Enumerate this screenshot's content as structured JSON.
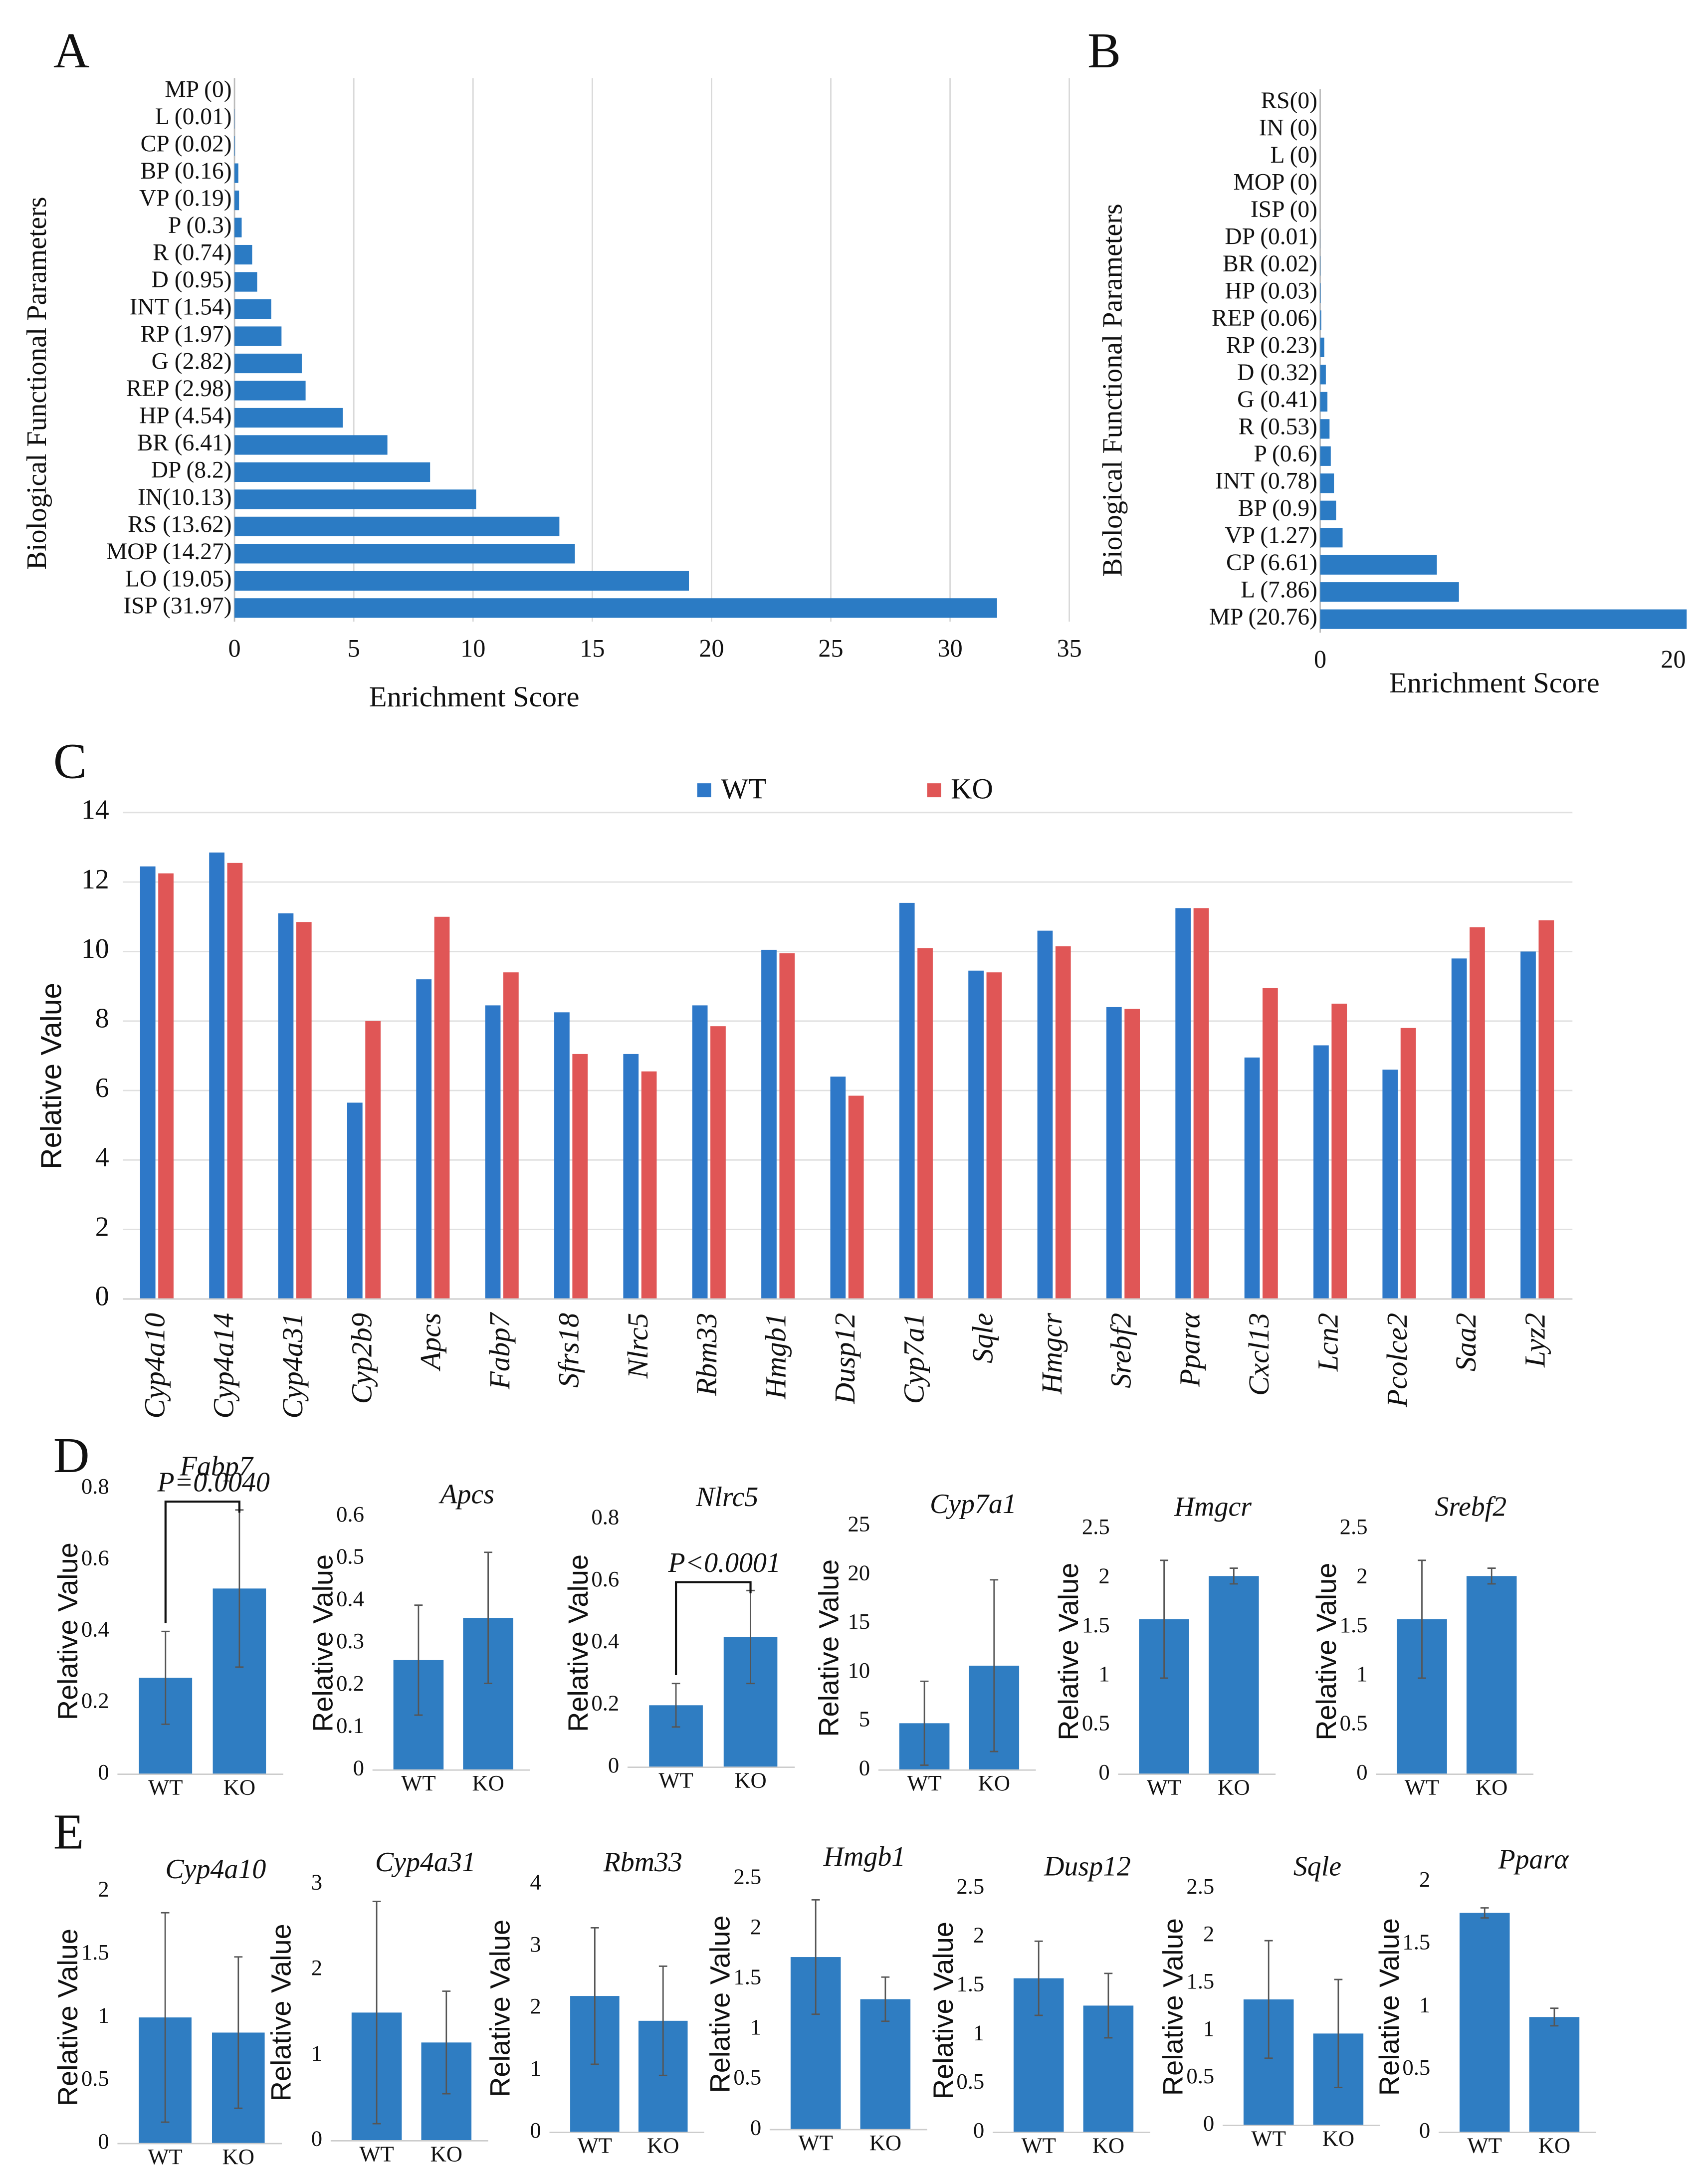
{
  "chart_data": [
    {
      "type": "bar",
      "orientation": "horizontal",
      "panel": "A",
      "xlabel": "Enrichment Score",
      "ylabel": "Biological Functional Parameters",
      "color": "#2b7bc4",
      "grid": true,
      "categories": [
        "MP (0)",
        "L (0.01)",
        "CP (0.02)",
        "BP (0.16)",
        "VP (0.19)",
        "P (0.3)",
        "R (0.74)",
        "D (0.95)",
        "INT (1.54)",
        "RP (1.97)",
        "G (2.82)",
        "REP (2.98)",
        "HP (4.54)",
        "BR (6.41)",
        "DP (8.2)",
        "IN(10.13)",
        "RS (13.62)",
        "MOP (14.27)",
        "LO (19.05)",
        "ISP (31.97)"
      ],
      "values": [
        0,
        0.01,
        0.02,
        0.16,
        0.19,
        0.3,
        0.74,
        0.95,
        1.54,
        1.97,
        2.82,
        2.98,
        4.54,
        6.41,
        8.2,
        10.13,
        13.62,
        14.27,
        19.05,
        31.97
      ],
      "xlim": [
        0,
        35
      ],
      "xticks": [
        0,
        5,
        10,
        15,
        20,
        25,
        30,
        35
      ]
    },
    {
      "type": "bar",
      "orientation": "horizontal",
      "panel": "B",
      "xlabel": "Enrichment Score",
      "ylabel": "Biological Functional Parameters",
      "color": "#2b7bc4",
      "grid": false,
      "categories": [
        "RS(0)",
        "IN (0)",
        "L (0)",
        "MOP (0)",
        "ISP (0)",
        "DP (0.01)",
        "BR (0.02)",
        "HP (0.03)",
        "REP (0.06)",
        "RP (0.23)",
        "D (0.32)",
        "G (0.41)",
        "R (0.53)",
        "P (0.6)",
        "INT (0.78)",
        "BP (0.9)",
        "VP (1.27)",
        "CP (6.61)",
        "L (7.86)",
        "MP (20.76)"
      ],
      "values": [
        0,
        0,
        0,
        0,
        0,
        0.01,
        0.02,
        0.03,
        0.06,
        0.23,
        0.32,
        0.41,
        0.53,
        0.6,
        0.78,
        0.9,
        1.27,
        6.61,
        7.86,
        20.76
      ],
      "xlim": [
        0,
        21
      ],
      "xticks": [
        0,
        20
      ]
    },
    {
      "type": "bar",
      "panel": "C",
      "ylabel": "Relative Value",
      "grid": true,
      "legend": "top",
      "categories": [
        "Cyp4a10",
        "Cyp4a14",
        "Cyp4a31",
        "Cyp2b9",
        "Apcs",
        "Fabp7",
        "Sfrs18",
        "Nlrc5",
        "Rbm33",
        "Hmgb1",
        "Dusp12",
        "Cyp7a1",
        "Sqle",
        "Hmgcr",
        "Srebf2",
        "Pparα",
        "Cxcl13",
        "Lcn2",
        "Pcolce2",
        "Saa2",
        "Lyz2"
      ],
      "series": [
        {
          "name": "WT",
          "color": "#2e78c8",
          "values": [
            12.45,
            12.85,
            11.1,
            5.65,
            9.2,
            8.45,
            8.25,
            7.05,
            8.45,
            10.05,
            6.4,
            11.4,
            9.45,
            10.6,
            8.4,
            11.25,
            6.95,
            7.3,
            6.6,
            9.8,
            10.0
          ]
        },
        {
          "name": "KO",
          "color": "#e05656",
          "values": [
            12.25,
            12.55,
            10.85,
            8.0,
            11.0,
            9.4,
            7.05,
            6.55,
            7.85,
            9.95,
            5.85,
            10.1,
            9.4,
            10.15,
            8.35,
            11.25,
            8.95,
            8.5,
            7.8,
            10.7,
            10.9
          ]
        }
      ],
      "ylim": [
        0,
        14
      ],
      "yticks": [
        0,
        2,
        4,
        6,
        8,
        10,
        12,
        14
      ]
    },
    {
      "type": "bar",
      "panel": "D",
      "title": "Fabp7",
      "ylabel": "Relative Value",
      "annotation": "P=0.0040",
      "color": "#2f7dc2",
      "categories": [
        "WT",
        "KO"
      ],
      "values": [
        0.27,
        0.52
      ],
      "errors": [
        0.13,
        0.22
      ],
      "ylim": [
        0,
        0.8
      ],
      "yticks": [
        0,
        0.2,
        0.4,
        0.6,
        0.8
      ]
    },
    {
      "type": "bar",
      "title": "Apcs",
      "ylabel": "Relative Value",
      "color": "#2f7dc2",
      "categories": [
        "WT",
        "KO"
      ],
      "values": [
        0.26,
        0.36
      ],
      "errors": [
        0.13,
        0.155
      ],
      "ylim": [
        0,
        0.6
      ],
      "yticks": [
        0,
        0.1,
        0.2,
        0.3,
        0.4,
        0.5,
        0.6
      ]
    },
    {
      "type": "bar",
      "title": "Nlrc5",
      "ylabel": "Relative Value",
      "annotation": "P<0.0001",
      "color": "#2f7dc2",
      "categories": [
        "WT",
        "KO"
      ],
      "values": [
        0.2,
        0.42
      ],
      "errors": [
        0.07,
        0.15
      ],
      "ylim": [
        0,
        0.8
      ],
      "yticks": [
        0,
        0.2,
        0.4,
        0.6,
        0.8
      ]
    },
    {
      "type": "bar",
      "title": "Cyp7a1",
      "ylabel": "Relative Value",
      "color": "#2f7dc2",
      "categories": [
        "WT",
        "KO"
      ],
      "values": [
        4.8,
        10.7
      ],
      "errors": [
        4.3,
        8.8
      ],
      "ylim": [
        0,
        25
      ],
      "yticks": [
        0,
        5,
        10,
        15,
        20,
        25
      ]
    },
    {
      "type": "bar",
      "title": "Hmgcr",
      "ylabel": "Relative Value",
      "color": "#2f7dc2",
      "categories": [
        "WT",
        "KO"
      ],
      "values": [
        1.58,
        2.02
      ],
      "errors": [
        0.6,
        0.08
      ],
      "ylim": [
        0,
        2.5
      ],
      "yticks": [
        0,
        0.5,
        1,
        1.5,
        2,
        2.5
      ]
    },
    {
      "type": "bar",
      "title": "Srebf2",
      "ylabel": "Relative Value",
      "color": "#2f7dc2",
      "categories": [
        "WT",
        "KO"
      ],
      "values": [
        1.58,
        2.02
      ],
      "errors": [
        0.6,
        0.08
      ],
      "ylim": [
        0,
        2.5
      ],
      "yticks": [
        0,
        0.5,
        1,
        1.5,
        2,
        2.5
      ]
    },
    {
      "type": "bar",
      "panel": "E",
      "title": "Cyp4a10",
      "ylabel": "Relative Value",
      "color": "#2f7dc2",
      "categories": [
        "WT",
        "KO"
      ],
      "values": [
        1.0,
        0.88
      ],
      "errors": [
        0.83,
        0.6
      ],
      "ylim": [
        0,
        2
      ],
      "yticks": [
        0,
        0.5,
        1,
        1.5,
        2
      ]
    },
    {
      "type": "bar",
      "title": "Cyp4a31",
      "ylabel": "Relative Value",
      "color": "#2f7dc2",
      "categories": [
        "WT",
        "KO"
      ],
      "values": [
        1.5,
        1.15
      ],
      "errors": [
        1.3,
        0.6
      ],
      "ylim": [
        0,
        3
      ],
      "yticks": [
        0,
        1,
        2,
        3
      ]
    },
    {
      "type": "bar",
      "title": "Rbm33",
      "ylabel": "Relative Value",
      "color": "#2f7dc2",
      "categories": [
        "WT",
        "KO"
      ],
      "values": [
        2.2,
        1.8
      ],
      "errors": [
        1.1,
        0.88
      ],
      "ylim": [
        0,
        4
      ],
      "yticks": [
        0,
        1,
        2,
        3,
        4
      ]
    },
    {
      "type": "bar",
      "title": "Hmgb1",
      "ylabel": "Relative Value",
      "color": "#2f7dc2",
      "categories": [
        "WT",
        "KO"
      ],
      "values": [
        1.72,
        1.3
      ],
      "errors": [
        0.57,
        0.22
      ],
      "ylim": [
        0,
        2.5
      ],
      "yticks": [
        0,
        0.5,
        1,
        1.5,
        2,
        2.5
      ]
    },
    {
      "type": "bar",
      "title": "Dusp12",
      "ylabel": "Relative Value",
      "color": "#2f7dc2",
      "categories": [
        "WT",
        "KO"
      ],
      "values": [
        1.58,
        1.3
      ],
      "errors": [
        0.38,
        0.33
      ],
      "ylim": [
        0,
        2.5
      ],
      "yticks": [
        0,
        0.5,
        1,
        1.5,
        2,
        2.5
      ]
    },
    {
      "type": "bar",
      "title": "Sqle",
      "ylabel": "Relative Value",
      "color": "#2f7dc2",
      "categories": [
        "WT",
        "KO"
      ],
      "values": [
        1.33,
        0.97
      ],
      "errors": [
        0.62,
        0.57
      ],
      "ylim": [
        0,
        2.5
      ],
      "yticks": [
        0,
        0.5,
        1,
        1.5,
        2,
        2.5
      ]
    },
    {
      "type": "bar",
      "title": "Pparα",
      "ylabel": "Relative Value",
      "color": "#2f7dc2",
      "categories": [
        "WT",
        "KO"
      ],
      "values": [
        1.75,
        0.92
      ],
      "errors": [
        0.04,
        0.07
      ],
      "ylim": [
        0,
        2
      ],
      "yticks": [
        0,
        0.5,
        1,
        1.5,
        2
      ]
    }
  ]
}
